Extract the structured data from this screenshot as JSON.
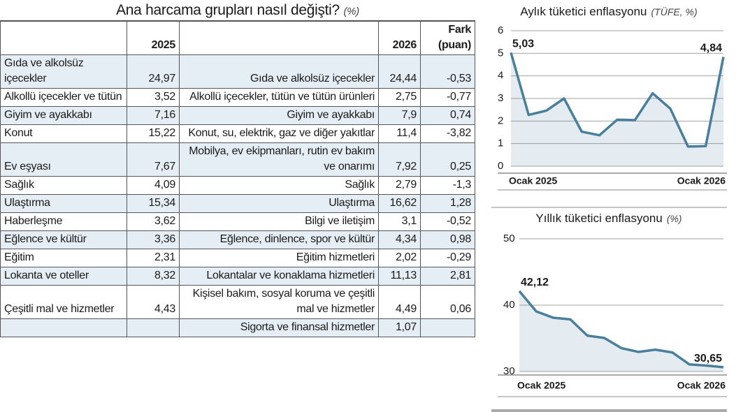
{
  "table": {
    "title": "Ana harcama grupları nasıl değişti?",
    "subtitle": "(%)",
    "header": [
      null,
      "2025",
      null,
      "2026",
      "Fark (puan)"
    ],
    "rows": [
      [
        "Gıda ve alkolsüz içecekler",
        "24,97",
        "Gıda ve alkolsüz içecekler",
        "24,44",
        "-0,53"
      ],
      [
        "Alkollü içecekler ve tütün",
        "3,52",
        "Alkollü içecekler, tütün ve tütün ürünleri",
        "2,75",
        "-0,77"
      ],
      [
        "Giyim ve ayakkabı",
        "7,16",
        "Giyim ve ayakkabı",
        "7,9",
        "0,74"
      ],
      [
        "Konut",
        "15,22",
        "Konut, su, elektrik, gaz ve diğer yakıtlar",
        "11,4",
        "-3,82"
      ],
      [
        "Ev eşyası",
        "7,67",
        "Mobilya, ev ekipmanları, rutin ev bakım ve onarımı",
        "7,92",
        "0,25"
      ],
      [
        "Sağlık",
        "4,09",
        "Sağlık",
        "2,79",
        "-1,3"
      ],
      [
        "Ulaştırma",
        "15,34",
        "Ulaştırma",
        "16,62",
        "1,28"
      ],
      [
        "Haberleşme",
        "3,62",
        "Bilgi ve iletişim",
        "3,1",
        "-0,52"
      ],
      [
        "Eğlence ve kültür",
        "3,36",
        "Eğlence, dinlence, spor ve kültür",
        "4,34",
        "0,98"
      ],
      [
        "Eğitim",
        "2,31",
        "Eğitim hizmetleri",
        "2,02",
        "-0,29"
      ],
      [
        "Lokanta ve oteller",
        "8,32",
        "Lokantalar ve konaklama hizmetleri",
        "11,13",
        "2,81"
      ],
      [
        "Çeşitli mal ve hizmetler",
        "4,43",
        "Kişisel bakım, sosyal koruma ve çeşitli mal ve hizmetler",
        "4,49",
        "0,06"
      ],
      [
        null,
        null,
        "Sigorta ve finansal hizmetler",
        "1,07",
        null
      ]
    ]
  },
  "chart_data": [
    {
      "type": "line",
      "title": "Aylık tüketici enflasyonu",
      "subtitle": "(TÜFE, %)",
      "categories": [
        "Ocak 2025",
        null,
        null,
        null,
        null,
        null,
        null,
        null,
        null,
        null,
        null,
        null,
        "Ocak 2026"
      ],
      "values": [
        5.03,
        2.27,
        2.46,
        3.0,
        1.53,
        1.37,
        2.06,
        2.04,
        3.23,
        2.55,
        0.87,
        0.89,
        4.84
      ],
      "value_labels": [
        "5,03",
        null,
        null,
        null,
        null,
        null,
        null,
        null,
        null,
        null,
        null,
        null,
        "4,84"
      ],
      "color": "#4a7f9c",
      "fill": "#e4ecf2",
      "ylim": [
        0,
        6
      ],
      "yticks": [
        0,
        1,
        2,
        3,
        4,
        5,
        6
      ],
      "grid": true
    },
    {
      "type": "line",
      "title": "Yıllık tüketici enflasyonu",
      "subtitle": "(%)",
      "categories": [
        "Ocak 2025",
        null,
        null,
        null,
        null,
        null,
        null,
        null,
        null,
        null,
        null,
        null,
        "Ocak 2026"
      ],
      "values": [
        42.12,
        39.05,
        38.1,
        37.86,
        35.41,
        35.05,
        33.52,
        32.95,
        33.29,
        32.87,
        31.07,
        30.89,
        30.65
      ],
      "value_labels": [
        "42,12",
        null,
        null,
        null,
        null,
        null,
        null,
        null,
        null,
        null,
        null,
        null,
        "30,65"
      ],
      "color": "#4a7f9c",
      "fill": "#e4ecf2",
      "ylim": [
        30,
        50
      ],
      "yticks": [
        30,
        40,
        50
      ],
      "grid": true
    }
  ]
}
